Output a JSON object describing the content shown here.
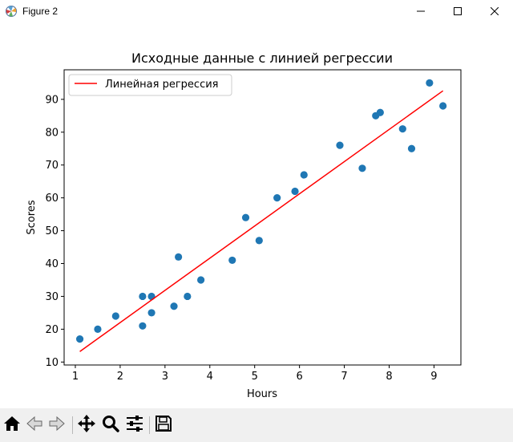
{
  "window": {
    "title": "Figure 2",
    "icons": {
      "app": "matplotlib-figure-icon",
      "minimize": "minimize-icon",
      "maximize": "maximize-icon",
      "close": "close-icon"
    }
  },
  "toolbar": {
    "buttons": [
      {
        "name": "home",
        "icon": "home-icon"
      },
      {
        "name": "back",
        "icon": "back-arrow-icon"
      },
      {
        "name": "forward",
        "icon": "forward-arrow-icon"
      },
      {
        "name": "pan",
        "icon": "pan-move-icon"
      },
      {
        "name": "zoom",
        "icon": "zoom-magnifier-icon"
      },
      {
        "name": "configure-subplots",
        "icon": "sliders-icon"
      },
      {
        "name": "save",
        "icon": "save-floppy-icon"
      }
    ]
  },
  "chart_data": {
    "type": "scatter",
    "title": "Исходные данные с линией регрессии",
    "xlabel": "Hours",
    "ylabel": "Scores",
    "xlim": [
      0.75,
      9.6
    ],
    "ylim": [
      9.1,
      99.0
    ],
    "xticks": [
      "1",
      "2",
      "3",
      "4",
      "5",
      "6",
      "7",
      "8",
      "9"
    ],
    "yticks": [
      "10",
      "20",
      "30",
      "40",
      "50",
      "60",
      "70",
      "80",
      "90"
    ],
    "grid": false,
    "legend_position": "top-left",
    "series": [
      {
        "kind": "scatter",
        "color": "#1f77b4",
        "points": [
          [
            1.1,
            17
          ],
          [
            1.5,
            20
          ],
          [
            1.9,
            24
          ],
          [
            2.5,
            21
          ],
          [
            2.5,
            30
          ],
          [
            2.7,
            25
          ],
          [
            2.7,
            30
          ],
          [
            3.2,
            27
          ],
          [
            3.3,
            42
          ],
          [
            3.5,
            30
          ],
          [
            3.8,
            35
          ],
          [
            4.5,
            41
          ],
          [
            4.8,
            54
          ],
          [
            5.1,
            47
          ],
          [
            5.5,
            60
          ],
          [
            5.9,
            62
          ],
          [
            6.1,
            67
          ],
          [
            6.9,
            76
          ],
          [
            7.4,
            69
          ],
          [
            7.7,
            85
          ],
          [
            7.8,
            86
          ],
          [
            8.3,
            81
          ],
          [
            8.5,
            75
          ],
          [
            8.9,
            95
          ],
          [
            9.2,
            88
          ]
        ]
      },
      {
        "kind": "line",
        "name": "Линейная регрессия",
        "color": "#ff0000",
        "points": [
          [
            1.1,
            13.2
          ],
          [
            9.2,
            92.6
          ]
        ]
      }
    ]
  }
}
